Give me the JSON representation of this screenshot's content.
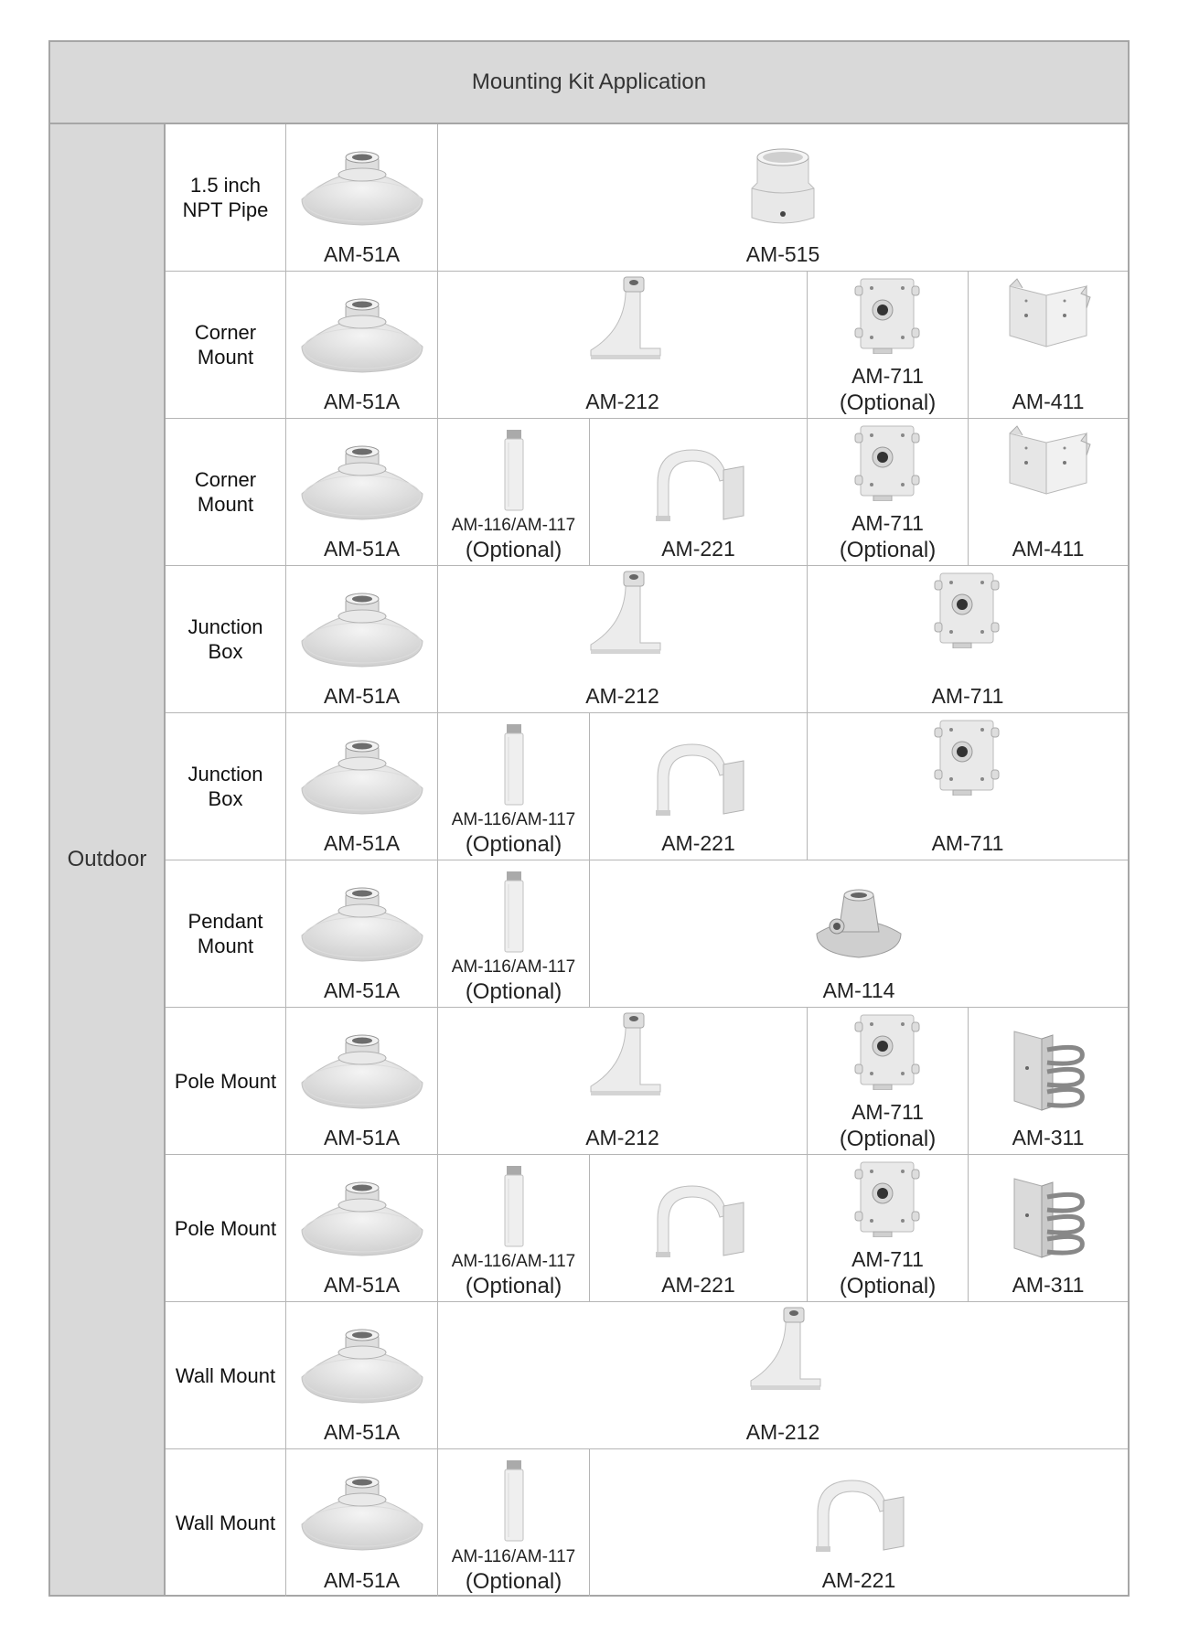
{
  "table": {
    "title": "Mounting Kit Application",
    "category": "Outdoor"
  },
  "rows": [
    {
      "name": "1.5 inch NPT Pipe",
      "items": [
        {
          "model": "AM-51A",
          "icon": "dome-adapter-icon"
        },
        {
          "model": "AM-515",
          "icon": "pipe-adapter-icon"
        }
      ]
    },
    {
      "name": "Corner Mount",
      "items": [
        {
          "model": "AM-51A",
          "icon": "dome-adapter-icon"
        },
        {
          "model": "AM-212",
          "icon": "wall-bracket-icon"
        },
        {
          "model": "AM-711",
          "note": "(Optional)",
          "icon": "junction-box-icon"
        },
        {
          "model": "AM-411",
          "icon": "corner-plate-icon"
        }
      ]
    },
    {
      "name": "Corner Mount",
      "items": [
        {
          "model": "AM-51A",
          "icon": "dome-adapter-icon"
        },
        {
          "model": "AM-116/AM-117",
          "note": "(Optional)",
          "icon": "extension-pipe-icon"
        },
        {
          "model": "AM-221",
          "icon": "gooseneck-bracket-icon"
        },
        {
          "model": "AM-711",
          "note": "(Optional)",
          "icon": "junction-box-icon"
        },
        {
          "model": "AM-411",
          "icon": "corner-plate-icon"
        }
      ]
    },
    {
      "name": "Junction Box",
      "items": [
        {
          "model": "AM-51A",
          "icon": "dome-adapter-icon"
        },
        {
          "model": "AM-212",
          "icon": "wall-bracket-icon"
        },
        {
          "model": "AM-711",
          "icon": "junction-box-icon"
        }
      ]
    },
    {
      "name": "Junction Box",
      "items": [
        {
          "model": "AM-51A",
          "icon": "dome-adapter-icon"
        },
        {
          "model": "AM-116/AM-117",
          "note": "(Optional)",
          "icon": "extension-pipe-icon"
        },
        {
          "model": "AM-221",
          "icon": "gooseneck-bracket-icon"
        },
        {
          "model": "AM-711",
          "icon": "junction-box-icon"
        }
      ]
    },
    {
      "name": "Pendant Mount",
      "items": [
        {
          "model": "AM-51A",
          "icon": "dome-adapter-icon"
        },
        {
          "model": "AM-116/AM-117",
          "note": "(Optional)",
          "icon": "extension-pipe-icon"
        },
        {
          "model": "AM-114",
          "icon": "ceiling-mount-icon"
        }
      ]
    },
    {
      "name": "Pole Mount",
      "items": [
        {
          "model": "AM-51A",
          "icon": "dome-adapter-icon"
        },
        {
          "model": "AM-212",
          "icon": "wall-bracket-icon"
        },
        {
          "model": "AM-711",
          "note": "(Optional)",
          "icon": "junction-box-icon"
        },
        {
          "model": "AM-311",
          "icon": "pole-strap-icon"
        }
      ]
    },
    {
      "name": "Pole Mount",
      "items": [
        {
          "model": "AM-51A",
          "icon": "dome-adapter-icon"
        },
        {
          "model": "AM-116/AM-117",
          "note": "(Optional)",
          "icon": "extension-pipe-icon"
        },
        {
          "model": "AM-221",
          "icon": "gooseneck-bracket-icon"
        },
        {
          "model": "AM-711",
          "note": "(Optional)",
          "icon": "junction-box-icon"
        },
        {
          "model": "AM-311",
          "icon": "pole-strap-icon"
        }
      ]
    },
    {
      "name": "Wall Mount",
      "items": [
        {
          "model": "AM-51A",
          "icon": "dome-adapter-icon"
        },
        {
          "model": "AM-212",
          "icon": "wall-bracket-icon"
        }
      ]
    },
    {
      "name": "Wall Mount",
      "items": [
        {
          "model": "AM-51A",
          "icon": "dome-adapter-icon"
        },
        {
          "model": "AM-116/AM-117",
          "note": "(Optional)",
          "icon": "extension-pipe-icon"
        },
        {
          "model": "AM-221",
          "icon": "gooseneck-bracket-icon"
        }
      ]
    }
  ]
}
